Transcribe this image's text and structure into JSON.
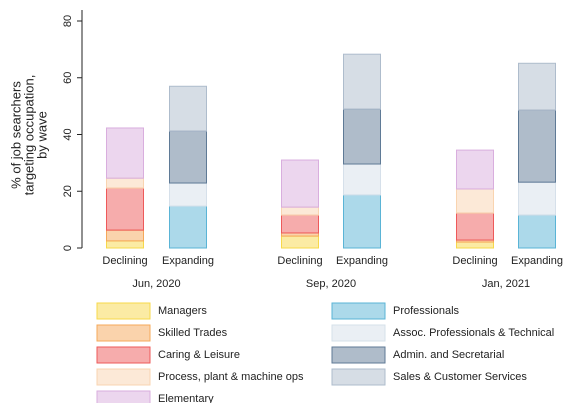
{
  "chart_data": {
    "type": "stacked-bar",
    "ylabel": [
      "% of job searchers",
      "targeting occupation,",
      "by wave"
    ],
    "categories": [
      "Declining",
      "Expanding",
      "Declining",
      "Expanding",
      "Declining",
      "Expanding"
    ],
    "groups": [
      "Jun, 2020",
      "Sep, 2020",
      "Jan, 2021"
    ],
    "ylim": [
      0,
      80
    ],
    "yticks": [
      0,
      20,
      40,
      60,
      80
    ],
    "series": [
      {
        "name": "Managers",
        "color": "#f7d84a",
        "values": [
          2.5,
          null,
          4.2,
          null,
          2.1,
          null
        ]
      },
      {
        "name": "Skilled Trades",
        "color": "#f5a85a",
        "values": [
          3.8,
          null,
          1.1,
          null,
          0.7,
          null
        ]
      },
      {
        "name": "Caring & Leisure",
        "color": "#ee5a5a",
        "values": [
          14.8,
          null,
          6.3,
          null,
          9.5,
          null
        ]
      },
      {
        "name": "Process, plant & machine ops",
        "color": "#f9d4b0",
        "values": [
          3.5,
          null,
          2.8,
          null,
          8.5,
          null
        ]
      },
      {
        "name": "Elementary",
        "color": "#d9aede",
        "values": [
          17.7,
          null,
          16.6,
          null,
          13.7,
          null
        ]
      },
      {
        "name": "Professionals",
        "color": "#5ab4d6",
        "values": [
          null,
          14.8,
          null,
          18.7,
          null,
          11.6
        ]
      },
      {
        "name": "Assoc. Professionals & Technical",
        "color": "#d6e0ea",
        "values": [
          null,
          8.1,
          null,
          10.9,
          null,
          11.6
        ]
      },
      {
        "name": "Admin. and Secretarial",
        "color": "#5f7a96",
        "values": [
          null,
          18.3,
          null,
          19.3,
          null,
          25.4
        ]
      },
      {
        "name": "Sales & Customer Services",
        "color": "#aebccc",
        "values": [
          null,
          15.8,
          null,
          19.4,
          null,
          16.5
        ]
      }
    ]
  }
}
